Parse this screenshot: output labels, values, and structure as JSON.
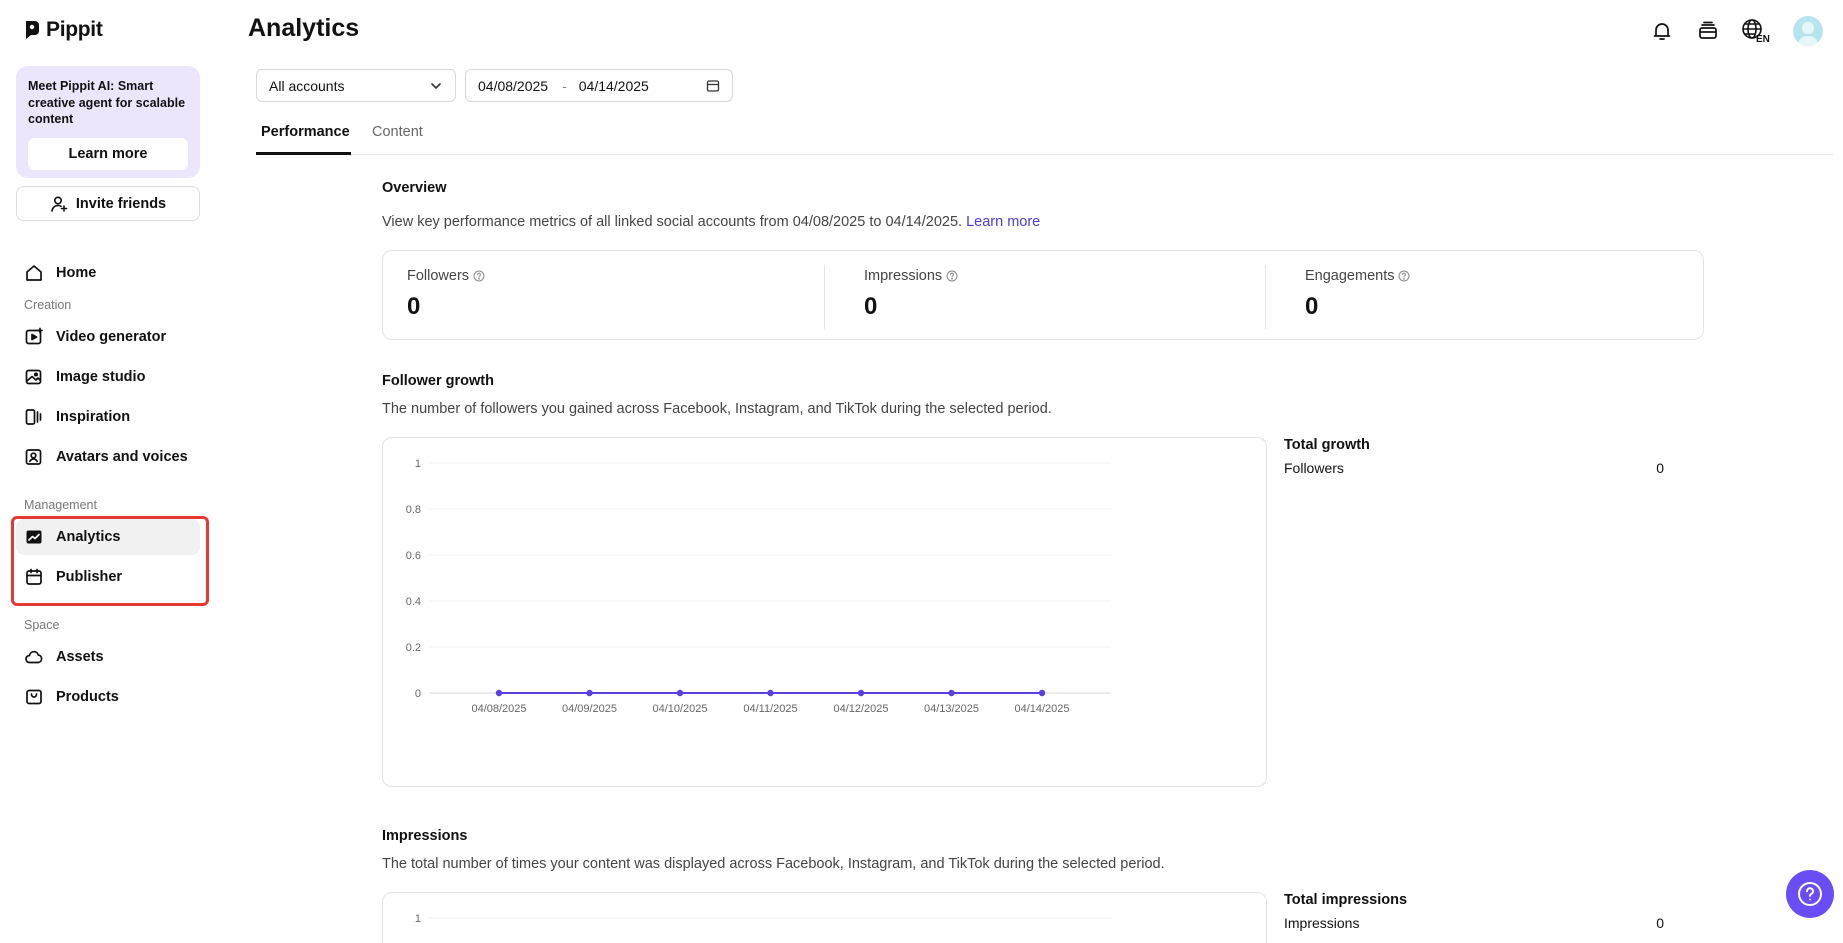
{
  "app": {
    "name": "Pippit"
  },
  "sidebar": {
    "promo": {
      "text": "Meet Pippit AI: Smart creative agent for scalable content",
      "button": "Learn more"
    },
    "invite_label": "Invite friends",
    "home": "Home",
    "sections": {
      "creation": "Creation",
      "management": "Management",
      "space": "Space"
    },
    "creation_items": [
      "Video generator",
      "Image studio",
      "Inspiration",
      "Avatars and voices"
    ],
    "management_items": [
      "Analytics",
      "Publisher"
    ],
    "space_items": [
      "Assets",
      "Products"
    ],
    "active": "Analytics"
  },
  "header": {
    "title": "Analytics",
    "language": "EN",
    "icons": [
      "bell-icon",
      "subscription-icon",
      "globe-language-icon",
      "avatar"
    ]
  },
  "filters": {
    "account": "All accounts",
    "start_date": "04/08/2025",
    "end_date": "04/14/2025",
    "separator": "-"
  },
  "tabs": [
    "Performance",
    "Content"
  ],
  "overview": {
    "title": "Overview",
    "description": "View key performance metrics of all linked social accounts from 04/08/2025 to 04/14/2025.",
    "link": "Learn more",
    "metrics": [
      {
        "label": "Followers",
        "value": "0"
      },
      {
        "label": "Impressions",
        "value": "0"
      },
      {
        "label": "Engagements",
        "value": "0"
      }
    ]
  },
  "follower_growth": {
    "title": "Follower growth",
    "description": "The number of followers you gained across Facebook, Instagram, and TikTok during the selected period.",
    "side_title": "Total growth",
    "side_label": "Followers",
    "side_value": "0"
  },
  "impressions": {
    "title": "Impressions",
    "description": "The total number of times your content was displayed across Facebook, Instagram, and TikTok during the selected period.",
    "side_title": "Total impressions",
    "side_label": "Impressions",
    "side_value": "0"
  },
  "colors": {
    "accent": "#6a4df5",
    "promo_bg": "#ece6fd",
    "line": "#5b3fe0",
    "highlight": "#e53935"
  },
  "chart_data": [
    {
      "type": "line",
      "x": [
        "04/08/2025",
        "04/09/2025",
        "04/10/2025",
        "04/11/2025",
        "04/12/2025",
        "04/13/2025",
        "04/14/2025"
      ],
      "series": [
        {
          "values": [
            0,
            0,
            0,
            0,
            0,
            0,
            0
          ]
        }
      ],
      "yticks": [
        "1",
        "0.8",
        "0.6",
        "0.4",
        "0.2",
        "0"
      ],
      "ylim": [
        0,
        1
      ],
      "grid": true
    },
    {
      "type": "line",
      "yticks": [
        "1"
      ],
      "ylim": [
        0,
        1
      ],
      "grid": true
    }
  ]
}
